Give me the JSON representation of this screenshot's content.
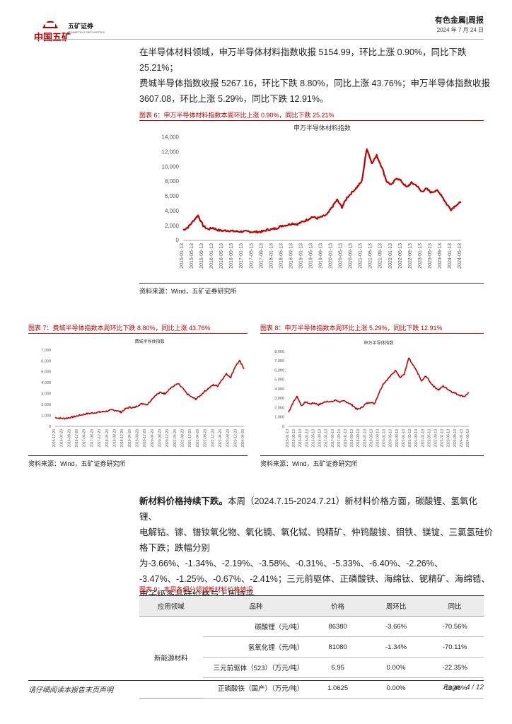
{
  "header": {
    "logo_text": "五矿证券",
    "logo_en": "MINMETALS SECURITIES",
    "logo_cn": "中国五矿",
    "report_type": "有色金属|周报",
    "date": "2024 年 7 月 24 日"
  },
  "intro_paragraph": [
    "在半导体材料领域，申万半导体材料指数收报 5154.99，环比上涨 0.90%，同比下跌 25.21%；",
    "费城半导体指数收报 5267.16，环比下跌 8.80%，同比上涨 43.76%；申万半导体指数收报",
    "3607.08，环比上涨 5.29%，同比下跌 12.91%。"
  ],
  "figure6": {
    "caption": "图表 6：申万半导体材料指数本周环比上涨 0.90%，同比下跌 25.21%",
    "source": "资料来源：Wind，五矿证券研究所",
    "chart_data": {
      "type": "line",
      "title": "申万半导体材料指数",
      "color": "#c00000",
      "ylim": [
        0,
        14000
      ],
      "yticks": [
        "0",
        "2,000",
        "4,000",
        "6,000",
        "8,000",
        "10,000",
        "12,000",
        "14,000"
      ],
      "xticks": [
        "2015-01-13",
        "2015-05-13",
        "2015-09-13",
        "2016-01-13",
        "2016-05-13",
        "2016-09-13",
        "2017-01-13",
        "2017-05-13",
        "2017-09-13",
        "2018-01-13",
        "2018-05-13",
        "2018-09-13",
        "2019-01-13",
        "2019-05-13",
        "2019-09-13",
        "2020-01-13",
        "2020-05-13",
        "2020-09-13",
        "2021-01-13",
        "2021-05-13",
        "2021-09-13",
        "2022-01-13",
        "2022-05-13",
        "2022-09-13",
        "2023-01-13",
        "2023-05-13",
        "2023-09-13",
        "2024-01-13",
        "2024-05-13"
      ],
      "series": [
        {
          "points": [
            [
              0,
              1400
            ],
            [
              1,
              1800
            ],
            [
              2,
              2600
            ],
            [
              3,
              3400
            ],
            [
              4,
              2000
            ],
            [
              5,
              1500
            ],
            [
              6,
              1700
            ],
            [
              7,
              1400
            ],
            [
              8,
              1300
            ],
            [
              9,
              1350
            ],
            [
              10,
              1250
            ],
            [
              11,
              1200
            ],
            [
              12,
              1200
            ],
            [
              13,
              1200
            ],
            [
              14,
              1150
            ],
            [
              15,
              1150
            ],
            [
              16,
              1200
            ],
            [
              17,
              1450
            ],
            [
              18,
              1500
            ],
            [
              19,
              1700
            ],
            [
              20,
              2000
            ],
            [
              21,
              2100
            ],
            [
              22,
              2300
            ],
            [
              23,
              2200
            ],
            [
              24,
              2500
            ],
            [
              25,
              2800
            ],
            [
              26,
              3200
            ],
            [
              27,
              3000
            ],
            [
              28,
              3200
            ],
            [
              29,
              3500
            ],
            [
              30,
              4500
            ],
            [
              31,
              5500
            ],
            [
              32,
              4500
            ],
            [
              33,
              5800
            ],
            [
              34,
              6500
            ],
            [
              35,
              7200
            ],
            [
              36,
              8000
            ],
            [
              37,
              12500
            ],
            [
              38,
              10500
            ],
            [
              39,
              11500
            ],
            [
              40,
              10000
            ],
            [
              41,
              8000
            ],
            [
              42,
              7500
            ],
            [
              43,
              8500
            ],
            [
              44,
              8000
            ],
            [
              45,
              7200
            ],
            [
              46,
              7800
            ],
            [
              47,
              7500
            ],
            [
              48,
              6600
            ],
            [
              49,
              7000
            ],
            [
              50,
              6500
            ],
            [
              51,
              6800
            ],
            [
              52,
              6200
            ],
            [
              53,
              5000
            ],
            [
              54,
              4200
            ],
            [
              55,
              4800
            ],
            [
              56,
              5155
            ]
          ],
          "n": 56
        }
      ]
    }
  },
  "figure7": {
    "caption": "图表 7：费城半导体指数本周环比下跌 8.80%，同比上涨 43.76%",
    "source": "资料来源：Wind，五矿证券研究所",
    "chart_data": {
      "type": "line",
      "title": "费城半导体指数",
      "color": "#c00000",
      "ylim": [
        0,
        7000
      ],
      "yticks": [
        "0",
        "1,000",
        "2,000",
        "3,000",
        "4,000",
        "5,000",
        "6,000",
        "7,000"
      ],
      "xticks": [
        "2015-12-20",
        "2016-04-20",
        "2016-08-20",
        "2016-12-20",
        "2017-04-20",
        "2017-08-20",
        "2017-12-20",
        "2018-04-20",
        "2018-08-20",
        "2018-12-20",
        "2019-04-20",
        "2019-08-20",
        "2019-12-20",
        "2020-04-20",
        "2020-08-20",
        "2020-12-20",
        "2021-04-20",
        "2021-08-20",
        "2021-12-20",
        "2022-04-20",
        "2022-08-20",
        "2022-12-20",
        "2023-04-20",
        "2023-08-20",
        "2023-12-20",
        "2024-04-20"
      ],
      "series": [
        {
          "points": [
            [
              0,
              800
            ],
            [
              1,
              750
            ],
            [
              2,
              720
            ],
            [
              3,
              780
            ],
            [
              4,
              850
            ],
            [
              5,
              950
            ],
            [
              6,
              1050
            ],
            [
              7,
              1150
            ],
            [
              8,
              1200
            ],
            [
              9,
              1250
            ],
            [
              10,
              1300
            ],
            [
              11,
              1350
            ],
            [
              12,
              1400
            ],
            [
              13,
              1500
            ],
            [
              14,
              1450
            ],
            [
              15,
              1300
            ],
            [
              16,
              1600
            ],
            [
              17,
              1750
            ],
            [
              18,
              1700
            ],
            [
              19,
              1950
            ],
            [
              20,
              2100
            ],
            [
              21,
              2000
            ],
            [
              22,
              2500
            ],
            [
              23,
              2900
            ],
            [
              24,
              3100
            ],
            [
              25,
              3000
            ],
            [
              26,
              3400
            ],
            [
              27,
              3700
            ],
            [
              28,
              3900
            ],
            [
              29,
              3500
            ],
            [
              30,
              3000
            ],
            [
              31,
              2700
            ],
            [
              32,
              2500
            ],
            [
              33,
              2800
            ],
            [
              34,
              3200
            ],
            [
              35,
              3500
            ],
            [
              36,
              3800
            ],
            [
              37,
              3700
            ],
            [
              38,
              4300
            ],
            [
              39,
              4800
            ],
            [
              40,
              4500
            ],
            [
              41,
              5500
            ],
            [
              42,
              6000
            ],
            [
              43,
              5267
            ]
          ],
          "n": 43
        }
      ]
    }
  },
  "figure8": {
    "caption": "图表 8：申万半导体指数本周环比上涨 5.29%，同比下跌 12.91%",
    "source": "资料来源：Wind，五矿证券研究所",
    "chart_data": {
      "type": "line",
      "title": "申万半导体指数",
      "color": "#c00000",
      "ylim": [
        0,
        8000
      ],
      "yticks": [
        "0",
        "1,000",
        "2,000",
        "3,000",
        "4,000",
        "5,000",
        "6,000",
        "7,000",
        "8,000"
      ],
      "xticks": [
        "2015-01-13",
        "2015-05-13",
        "2015-09-13",
        "2016-01-13",
        "2016-05-13",
        "2016-09-13",
        "2017-01-13",
        "2017-05-13",
        "2017-09-13",
        "2018-01-13",
        "2018-05-13",
        "2018-09-13",
        "2019-01-13",
        "2019-05-13",
        "2019-09-13",
        "2020-01-13",
        "2020-05-13",
        "2020-09-13",
        "2021-01-13",
        "2021-05-13",
        "2021-09-13",
        "2022-01-13",
        "2022-05-13",
        "2022-09-13",
        "2023-01-13",
        "2023-05-13",
        "2023-09-13",
        "2024-01-13",
        "2024-05-13"
      ],
      "series": [
        {
          "points": [
            [
              0,
              1500
            ],
            [
              1,
              2500
            ],
            [
              2,
              3200
            ],
            [
              3,
              2200
            ],
            [
              4,
              2600
            ],
            [
              5,
              2400
            ],
            [
              6,
              2500
            ],
            [
              7,
              2300
            ],
            [
              8,
              2500
            ],
            [
              9,
              2700
            ],
            [
              10,
              2600
            ],
            [
              11,
              2800
            ],
            [
              12,
              2600
            ],
            [
              13,
              2700
            ],
            [
              14,
              2500
            ],
            [
              15,
              2200
            ],
            [
              16,
              1800
            ],
            [
              17,
              2000
            ],
            [
              18,
              2400
            ],
            [
              19,
              2600
            ],
            [
              20,
              2400
            ],
            [
              21,
              3500
            ],
            [
              22,
              4500
            ],
            [
              23,
              5000
            ],
            [
              24,
              5500
            ],
            [
              25,
              6000
            ],
            [
              26,
              5200
            ],
            [
              27,
              5600
            ],
            [
              28,
              7300
            ],
            [
              29,
              6500
            ],
            [
              30,
              5800
            ],
            [
              31,
              4800
            ],
            [
              32,
              5400
            ],
            [
              33,
              4700
            ],
            [
              34,
              4200
            ],
            [
              35,
              3900
            ],
            [
              36,
              4300
            ],
            [
              37,
              4000
            ],
            [
              38,
              3700
            ],
            [
              39,
              3500
            ],
            [
              40,
              3300
            ],
            [
              41,
              3200
            ],
            [
              42,
              3607
            ]
          ],
          "n": 42
        }
      ]
    }
  },
  "new_materials_paragraph": {
    "lead": "新材料价格持续下跌。",
    "lines": [
      "本周（2024.7.15-2024.7.21）新材料价格方面，碳酸锂、氢氧化锂、",
      "电解钴、镓、镨钕氧化物、氧化镝、氧化铽、钨精矿、仲钨酸铵、钼铁、镁锭、三氯氢硅价",
      "格下跌；跌幅分别为-3.66%、-1.34%、-2.19%、-3.58%、-0.31%、-5.33%、-6.40%、-2.26%、",
      "-3.47%、-1.25%、-0.67%、-2.41%；三元前驱体、正磷酸铁、海绵钛、铌精矿、海绵锆、",
      "电子级多晶硅价格与上周持平。"
    ]
  },
  "figure9": {
    "caption": "图表 9：本周各细分领域新材料价格情况",
    "headers": [
      "应用领域",
      "品种",
      "价格",
      "周环比",
      "同比"
    ],
    "category": "新能源材料",
    "rows": [
      [
        "碳酸锂（元/吨）",
        "86380",
        "-3.66%",
        "-70.56%"
      ],
      [
        "氢氧化锂（元/吨）",
        "81080",
        "-1.34%",
        "-70.11%"
      ],
      [
        "三元前驱体（523）（万元/吨）",
        "6.95",
        "0.00%",
        "-22.35%"
      ],
      [
        "正磷酸铁（国产）（万元/吨）",
        "1.0625",
        "0.00%",
        "-11.46%"
      ]
    ]
  },
  "footer": {
    "disclaimer": "请仔细阅读本报告末页声明",
    "page": "Page   4 / 12"
  }
}
